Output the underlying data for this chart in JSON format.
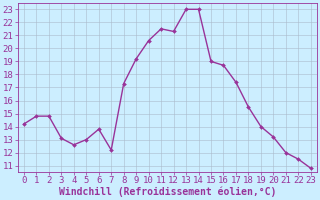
{
  "x": [
    0,
    1,
    2,
    3,
    4,
    5,
    6,
    7,
    8,
    9,
    10,
    11,
    12,
    13,
    14,
    15,
    16,
    17,
    18,
    19,
    20,
    21,
    22,
    23
  ],
  "y": [
    14.2,
    14.8,
    14.8,
    13.1,
    12.6,
    13.0,
    13.8,
    12.2,
    17.3,
    19.2,
    20.6,
    21.5,
    21.3,
    23.0,
    23.0,
    19.0,
    18.7,
    17.4,
    15.5,
    14.0,
    13.2,
    12.0,
    11.5,
    10.8
  ],
  "line_color": "#993399",
  "marker": "D",
  "marker_size": 2.0,
  "xlabel": "Windchill (Refroidissement éolien,°C)",
  "xlabel_fontsize": 7,
  "tick_fontsize": 6.5,
  "ylim": [
    10.5,
    23.5
  ],
  "xlim": [
    -0.5,
    23.5
  ],
  "yticks": [
    11,
    12,
    13,
    14,
    15,
    16,
    17,
    18,
    19,
    20,
    21,
    22,
    23
  ],
  "xticks": [
    0,
    1,
    2,
    3,
    4,
    5,
    6,
    7,
    8,
    9,
    10,
    11,
    12,
    13,
    14,
    15,
    16,
    17,
    18,
    19,
    20,
    21,
    22,
    23
  ],
  "background_color": "#cceeff",
  "grid_color": "#aabbcc",
  "line_width": 1.0,
  "spine_color": "#993399"
}
